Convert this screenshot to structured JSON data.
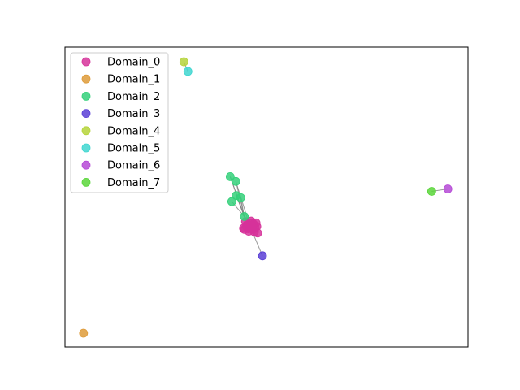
{
  "chart_data": {
    "type": "scatter",
    "grid": false,
    "legend_placement": "top-left",
    "xlim": [
      0,
      1
    ],
    "ylim": [
      0,
      1
    ],
    "series": [
      {
        "name": "Domain_0",
        "color": "#d6339a",
        "points": [
          [
            0.443,
            0.396
          ],
          [
            0.452,
            0.408
          ],
          [
            0.46,
            0.398
          ],
          [
            0.468,
            0.41
          ],
          [
            0.476,
            0.402
          ],
          [
            0.448,
            0.418
          ],
          [
            0.456,
            0.386
          ],
          [
            0.466,
            0.392
          ],
          [
            0.474,
            0.414
          ],
          [
            0.45,
            0.402
          ],
          [
            0.462,
            0.42
          ],
          [
            0.47,
            0.384
          ],
          [
            0.458,
            0.406
          ],
          [
            0.445,
            0.392
          ],
          [
            0.472,
            0.398
          ],
          [
            0.455,
            0.394
          ],
          [
            0.478,
            0.38
          ],
          [
            0.464,
            0.412
          ]
        ]
      },
      {
        "name": "Domain_1",
        "color": "#de9b3a",
        "points": [
          [
            0.046,
            0.046
          ]
        ]
      },
      {
        "name": "Domain_2",
        "color": "#34d07a",
        "points": [
          [
            0.41,
            0.568
          ],
          [
            0.424,
            0.552
          ],
          [
            0.425,
            0.505
          ],
          [
            0.436,
            0.498
          ],
          [
            0.414,
            0.485
          ],
          [
            0.445,
            0.435
          ]
        ]
      },
      {
        "name": "Domain_3",
        "color": "#5a3fd6",
        "points": [
          [
            0.49,
            0.304
          ]
        ]
      },
      {
        "name": "Domain_4",
        "color": "#b5d43a",
        "points": [
          [
            0.295,
            0.951
          ]
        ]
      },
      {
        "name": "Domain_5",
        "color": "#3fd6d0",
        "points": [
          [
            0.305,
            0.919
          ]
        ]
      },
      {
        "name": "Domain_6",
        "color": "#b54ad6",
        "points": [
          [
            0.95,
            0.527
          ]
        ]
      },
      {
        "name": "Domain_7",
        "color": "#5ad63a",
        "points": [
          [
            0.91,
            0.519
          ]
        ]
      }
    ],
    "edges": [
      [
        [
          0.41,
          0.568
        ],
        [
          0.445,
          0.435
        ]
      ],
      [
        [
          0.424,
          0.552
        ],
        [
          0.445,
          0.435
        ]
      ],
      [
        [
          0.425,
          0.505
        ],
        [
          0.445,
          0.435
        ]
      ],
      [
        [
          0.436,
          0.498
        ],
        [
          0.445,
          0.435
        ]
      ],
      [
        [
          0.414,
          0.485
        ],
        [
          0.445,
          0.435
        ]
      ],
      [
        [
          0.41,
          0.568
        ],
        [
          0.452,
          0.408
        ]
      ],
      [
        [
          0.424,
          0.552
        ],
        [
          0.46,
          0.398
        ]
      ],
      [
        [
          0.445,
          0.435
        ],
        [
          0.458,
          0.406
        ]
      ],
      [
        [
          0.458,
          0.406
        ],
        [
          0.49,
          0.304
        ]
      ],
      [
        [
          0.295,
          0.951
        ],
        [
          0.305,
          0.919
        ]
      ],
      [
        [
          0.91,
          0.519
        ],
        [
          0.95,
          0.527
        ]
      ]
    ]
  }
}
